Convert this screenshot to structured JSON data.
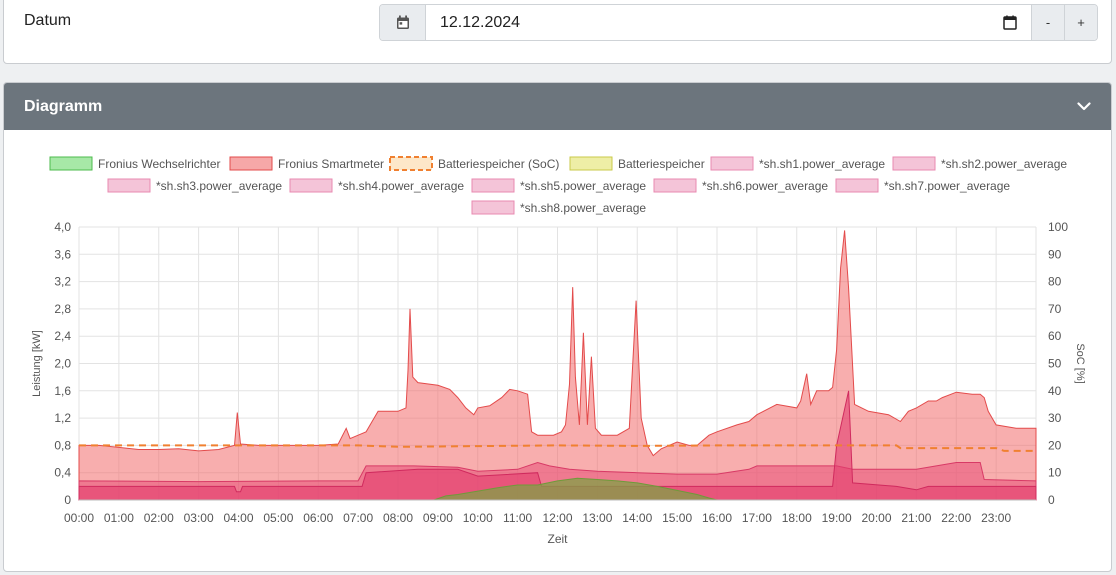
{
  "date_section": {
    "label": "Datum",
    "date_value": "12.12.2024",
    "minus_label": "-",
    "plus_label": "+"
  },
  "chart_section": {
    "title": "Diagramm"
  },
  "icons": {
    "calendar": "calendar-icon",
    "date_picker": "calendar-picker-icon",
    "collapse": "chevron-down-icon"
  },
  "colors": {
    "header_bg": "#6c757d",
    "wechselrichter": "#8fd98f",
    "smartmeter": "#f26b6b",
    "soc": "#f08030",
    "batterie": "#e6e68a",
    "sh": "#f4b8cf"
  },
  "chart_data": {
    "type": "area",
    "title": "",
    "xlabel": "Zeit",
    "ylabel": "Leistung [kW]",
    "y2label": "SoC [%]",
    "ylim": [
      0,
      4
    ],
    "y2lim": [
      0,
      100
    ],
    "yticks": [
      "0",
      "0,4",
      "0,8",
      "1,2",
      "1,6",
      "2,0",
      "2,4",
      "2,8",
      "3,2",
      "3,6",
      "4,0"
    ],
    "y2ticks": [
      "0",
      "10",
      "20",
      "30",
      "40",
      "50",
      "60",
      "70",
      "80",
      "90",
      "100"
    ],
    "xticks": [
      "00:00",
      "01:00",
      "02:00",
      "03:00",
      "04:00",
      "05:00",
      "06:00",
      "07:00",
      "08:00",
      "09:00",
      "10:00",
      "11:00",
      "12:00",
      "13:00",
      "14:00",
      "15:00",
      "16:00",
      "17:00",
      "18:00",
      "19:00",
      "20:00",
      "21:00",
      "22:00",
      "23:00"
    ],
    "grid": true,
    "legend_position": "top",
    "legend": [
      "Fronius Wechselrichter",
      "Fronius Smartmeter",
      "Batteriespeicher (SoC)",
      "Batteriespeicher",
      "*sh.sh1.power_average",
      "*sh.sh2.power_average",
      "*sh.sh3.power_average",
      "*sh.sh4.power_average",
      "*sh.sh5.power_average",
      "*sh.sh6.power_average",
      "*sh.sh7.power_average",
      "*sh.sh8.power_average"
    ],
    "series": [
      {
        "name": "Fronius Smartmeter",
        "axis": "left",
        "points": [
          [
            0,
            0.8
          ],
          [
            0.5,
            0.8
          ],
          [
            1,
            0.77
          ],
          [
            1.5,
            0.74
          ],
          [
            2,
            0.74
          ],
          [
            2.5,
            0.75
          ],
          [
            3,
            0.72
          ],
          [
            3.5,
            0.74
          ],
          [
            3.9,
            0.8
          ],
          [
            3.97,
            1.28
          ],
          [
            4.05,
            0.82
          ],
          [
            4.5,
            0.8
          ],
          [
            5,
            0.8
          ],
          [
            5.5,
            0.8
          ],
          [
            6,
            0.8
          ],
          [
            6.5,
            0.82
          ],
          [
            6.7,
            1.05
          ],
          [
            6.8,
            0.9
          ],
          [
            7,
            0.95
          ],
          [
            7.2,
            1.0
          ],
          [
            7.35,
            1.15
          ],
          [
            7.5,
            1.3
          ],
          [
            8,
            1.3
          ],
          [
            8.2,
            1.35
          ],
          [
            8.25,
            1.9
          ],
          [
            8.3,
            2.8
          ],
          [
            8.37,
            1.8
          ],
          [
            8.5,
            1.72
          ],
          [
            9,
            1.68
          ],
          [
            9.3,
            1.62
          ],
          [
            9.5,
            1.5
          ],
          [
            9.7,
            1.35
          ],
          [
            9.9,
            1.25
          ],
          [
            10,
            1.35
          ],
          [
            10.3,
            1.38
          ],
          [
            10.6,
            1.5
          ],
          [
            10.8,
            1.62
          ],
          [
            11,
            1.6
          ],
          [
            11.25,
            1.55
          ],
          [
            11.35,
            1.0
          ],
          [
            11.5,
            0.95
          ],
          [
            11.9,
            0.95
          ],
          [
            12.1,
            1.0
          ],
          [
            12.2,
            1.1
          ],
          [
            12.3,
            1.7
          ],
          [
            12.38,
            3.12
          ],
          [
            12.45,
            1.8
          ],
          [
            12.55,
            1.1
          ],
          [
            12.65,
            2.45
          ],
          [
            12.75,
            1.1
          ],
          [
            12.85,
            2.1
          ],
          [
            12.95,
            1.05
          ],
          [
            13.1,
            0.95
          ],
          [
            13.5,
            0.95
          ],
          [
            13.8,
            1.05
          ],
          [
            13.97,
            2.92
          ],
          [
            14.1,
            1.2
          ],
          [
            14.25,
            0.8
          ],
          [
            14.4,
            0.65
          ],
          [
            14.6,
            0.75
          ],
          [
            15,
            0.85
          ],
          [
            15.3,
            0.8
          ],
          [
            15.5,
            0.8
          ],
          [
            15.8,
            0.95
          ],
          [
            16,
            1.0
          ],
          [
            16.5,
            1.1
          ],
          [
            16.8,
            1.15
          ],
          [
            17,
            1.25
          ],
          [
            17.5,
            1.4
          ],
          [
            18,
            1.35
          ],
          [
            18.1,
            1.45
          ],
          [
            18.25,
            1.85
          ],
          [
            18.35,
            1.4
          ],
          [
            18.5,
            1.6
          ],
          [
            18.8,
            1.6
          ],
          [
            18.9,
            1.65
          ],
          [
            19,
            2.2
          ],
          [
            19.1,
            3.4
          ],
          [
            19.2,
            3.95
          ],
          [
            19.3,
            3.1
          ],
          [
            19.45,
            1.4
          ],
          [
            19.8,
            1.3
          ],
          [
            20.3,
            1.25
          ],
          [
            20.6,
            1.15
          ],
          [
            20.8,
            1.3
          ],
          [
            21,
            1.35
          ],
          [
            21.3,
            1.45
          ],
          [
            21.5,
            1.45
          ],
          [
            21.65,
            1.5
          ],
          [
            22,
            1.58
          ],
          [
            22.4,
            1.55
          ],
          [
            22.6,
            1.55
          ],
          [
            22.7,
            1.5
          ],
          [
            22.8,
            1.3
          ],
          [
            23,
            1.1
          ],
          [
            23.5,
            1.05
          ],
          [
            24,
            1.05
          ]
        ]
      },
      {
        "name": "*sh.sh1.power_average",
        "axis": "left",
        "points": [
          [
            0,
            0.28
          ],
          [
            3,
            0.27
          ],
          [
            6,
            0.28
          ],
          [
            7,
            0.28
          ],
          [
            7.2,
            0.5
          ],
          [
            8.2,
            0.5
          ],
          [
            8.4,
            0.5
          ],
          [
            9.5,
            0.48
          ],
          [
            10,
            0.42
          ],
          [
            11,
            0.45
          ],
          [
            11.5,
            0.55
          ],
          [
            11.8,
            0.5
          ],
          [
            12.3,
            0.45
          ],
          [
            13,
            0.42
          ],
          [
            14,
            0.4
          ],
          [
            15,
            0.38
          ],
          [
            16,
            0.38
          ],
          [
            16.8,
            0.45
          ],
          [
            17,
            0.5
          ],
          [
            18,
            0.5
          ],
          [
            19,
            0.5
          ],
          [
            19.4,
            0.45
          ],
          [
            20,
            0.45
          ],
          [
            21,
            0.45
          ],
          [
            21.5,
            0.5
          ],
          [
            22,
            0.55
          ],
          [
            22.6,
            0.55
          ],
          [
            22.7,
            0.3
          ],
          [
            24,
            0.28
          ]
        ]
      },
      {
        "name": "*sh.sh2.power_average",
        "axis": "left",
        "points": [
          [
            0,
            0.2
          ],
          [
            3.9,
            0.2
          ],
          [
            3.95,
            0.12
          ],
          [
            4.05,
            0.12
          ],
          [
            4.1,
            0.2
          ],
          [
            7.1,
            0.2
          ],
          [
            7.2,
            0.4
          ],
          [
            8.5,
            0.45
          ],
          [
            9.5,
            0.45
          ],
          [
            10,
            0.35
          ],
          [
            11.5,
            0.4
          ],
          [
            11.6,
            0.2
          ],
          [
            13,
            0.2
          ],
          [
            16,
            0.2
          ],
          [
            18.9,
            0.2
          ],
          [
            19,
            0.8
          ],
          [
            19.3,
            1.6
          ],
          [
            19.4,
            0.25
          ],
          [
            20.5,
            0.2
          ],
          [
            21,
            0.15
          ],
          [
            21.3,
            0.2
          ],
          [
            24,
            0.2
          ]
        ]
      },
      {
        "name": "Fronius Wechselrichter",
        "axis": "left",
        "points": [
          [
            8.9,
            0
          ],
          [
            9.2,
            0.06
          ],
          [
            9.5,
            0.08
          ],
          [
            10,
            0.13
          ],
          [
            10.5,
            0.18
          ],
          [
            11,
            0.22
          ],
          [
            11.5,
            0.22
          ],
          [
            12,
            0.28
          ],
          [
            12.5,
            0.32
          ],
          [
            13,
            0.3
          ],
          [
            13.5,
            0.28
          ],
          [
            14,
            0.25
          ],
          [
            14.5,
            0.2
          ],
          [
            15,
            0.14
          ],
          [
            15.5,
            0.08
          ],
          [
            15.8,
            0.03
          ],
          [
            16,
            0
          ]
        ]
      },
      {
        "name": "Batteriespeicher (SoC)",
        "axis": "right",
        "points": [
          [
            0,
            20
          ],
          [
            6,
            20
          ],
          [
            7,
            20
          ],
          [
            8,
            19.5
          ],
          [
            12,
            20
          ],
          [
            14,
            19.8
          ],
          [
            16,
            20
          ],
          [
            18,
            20
          ],
          [
            19,
            20
          ],
          [
            20.5,
            20
          ],
          [
            20.6,
            19
          ],
          [
            23,
            19
          ],
          [
            23.2,
            18
          ],
          [
            24,
            18
          ]
        ]
      }
    ]
  }
}
